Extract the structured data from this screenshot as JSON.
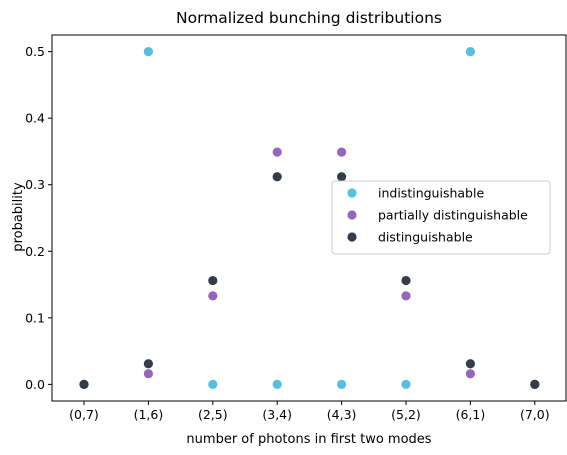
{
  "chart_data": {
    "type": "scatter",
    "title": "Normalized bunching distributions",
    "xlabel": "number of photons in first two modes",
    "ylabel": "probability",
    "categories": [
      "(0,7)",
      "(1,6)",
      "(2,5)",
      "(3,4)",
      "(4,3)",
      "(5,2)",
      "(6,1)",
      "(7,0)"
    ],
    "ylim": [
      -0.025,
      0.525
    ],
    "yticks": [
      "0.0",
      "0.1",
      "0.2",
      "0.3",
      "0.4",
      "0.5"
    ],
    "grid": false,
    "legend_position": "center-right",
    "series": [
      {
        "name": "indistinguishable",
        "color": "#56bfe0",
        "values": [
          0.0,
          0.5,
          0.0,
          0.0,
          0.0,
          0.0,
          0.5,
          0.0
        ]
      },
      {
        "name": "partially distinguishable",
        "color": "#9467bd",
        "values": [
          0.0,
          0.016,
          0.133,
          0.349,
          0.349,
          0.133,
          0.016,
          0.0
        ]
      },
      {
        "name": "distinguishable",
        "color": "#353b48",
        "values": [
          0.0,
          0.031,
          0.156,
          0.312,
          0.312,
          0.156,
          0.031,
          0.0
        ]
      }
    ]
  }
}
